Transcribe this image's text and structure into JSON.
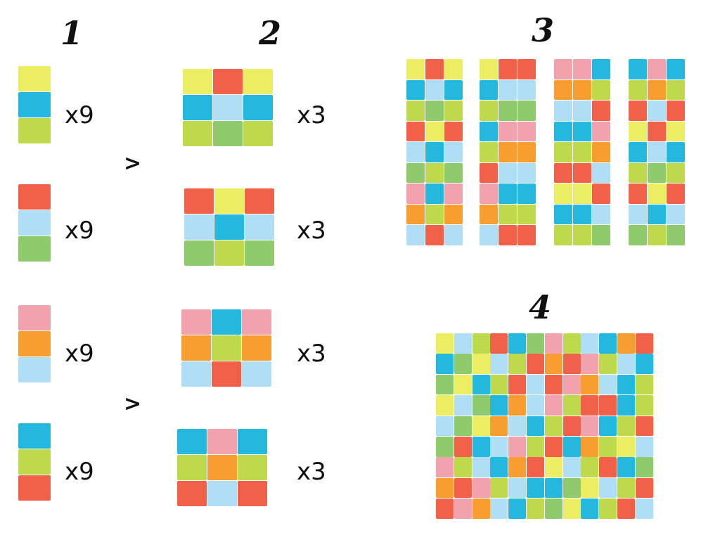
{
  "colors": {
    "yellow": "#e9ec56",
    "blue": "#11b2dc",
    "lime": "#b9d63d",
    "red": "#f0543a",
    "lightblue": "#a9dcf4",
    "green": "#86c561",
    "pink": "#f19aa5",
    "orange": "#f7961f"
  },
  "step_labels": [
    "1",
    "2",
    "3",
    "4"
  ],
  "multipliers": {
    "strip": "x9",
    "block": "x3"
  },
  "arrow_glyph": ">",
  "strips": [
    [
      "yellow",
      "blue",
      "lime"
    ],
    [
      "red",
      "lightblue",
      "green"
    ],
    [
      "pink",
      "orange",
      "lightblue"
    ],
    [
      "blue",
      "lime",
      "red"
    ]
  ],
  "blocks": [
    [
      [
        "yellow",
        "red",
        "yellow"
      ],
      [
        "blue",
        "lightblue",
        "blue"
      ],
      [
        "lime",
        "green",
        "lime"
      ]
    ],
    [
      [
        "red",
        "yellow",
        "red"
      ],
      [
        "lightblue",
        "blue",
        "lightblue"
      ],
      [
        "green",
        "lime",
        "green"
      ]
    ],
    [
      [
        "pink",
        "blue",
        "pink"
      ],
      [
        "orange",
        "lime",
        "orange"
      ],
      [
        "lightblue",
        "red",
        "lightblue"
      ]
    ],
    [
      [
        "blue",
        "pink",
        "blue"
      ],
      [
        "lime",
        "orange",
        "lime"
      ],
      [
        "red",
        "lightblue",
        "red"
      ]
    ]
  ]
}
